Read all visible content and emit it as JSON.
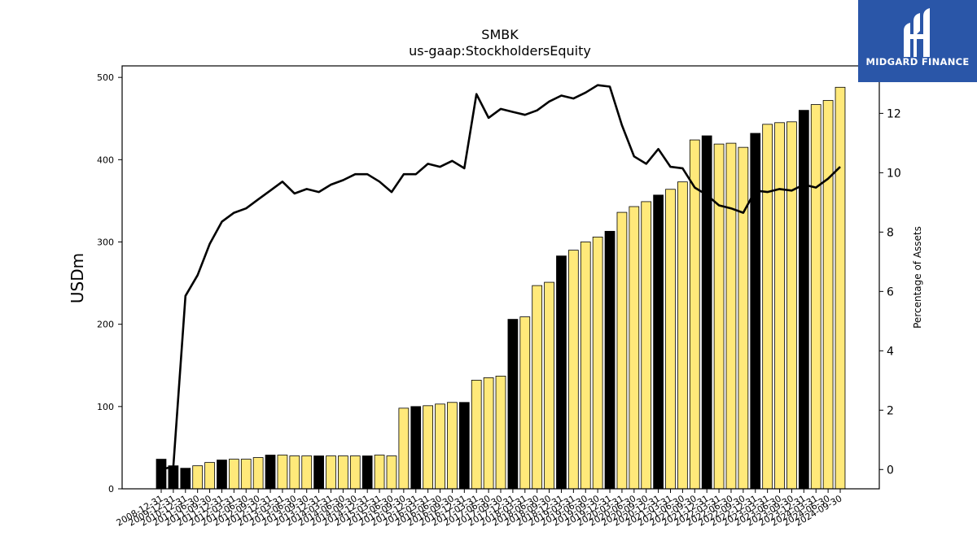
{
  "chart_data": {
    "type": "bar",
    "title": "SMBK",
    "subtitle": "us-gaap:StockholdersEquity",
    "ylabel": "USDm",
    "y2label": "Percentage of Assets",
    "ylim": [
      0,
      514
    ],
    "y2lim": [
      -0.65,
      13.6
    ],
    "yticks": [
      0,
      100,
      200,
      300,
      400,
      500
    ],
    "y2ticks": [
      0,
      2,
      4,
      6,
      8,
      10,
      12
    ],
    "categories": [
      "2008-12-31",
      "2009-12-31",
      "2010-12-31",
      "2011-06-30",
      "2011-09-30",
      "2011-12-31",
      "2012-03-31",
      "2012-06-30",
      "2012-09-30",
      "2012-12-31",
      "2013-03-31",
      "2013-06-30",
      "2013-09-30",
      "2013-12-31",
      "2014-03-31",
      "2014-06-30",
      "2014-09-30",
      "2014-12-31",
      "2015-03-31",
      "2015-06-30",
      "2015-09-30",
      "2015-12-31",
      "2016-03-31",
      "2016-06-30",
      "2016-09-30",
      "2016-12-31",
      "2017-03-31",
      "2017-06-30",
      "2017-09-30",
      "2017-12-31",
      "2018-03-31",
      "2018-06-30",
      "2018-09-30",
      "2018-12-31",
      "2019-03-31",
      "2019-06-30",
      "2019-09-30",
      "2019-12-31",
      "2020-03-31",
      "2020-06-30",
      "2020-09-30",
      "2020-12-31",
      "2021-03-31",
      "2021-06-30",
      "2021-09-30",
      "2021-12-31",
      "2022-03-31",
      "2022-06-30",
      "2022-09-30",
      "2022-12-31",
      "2023-03-31",
      "2023-06-30",
      "2023-09-30",
      "2023-12-31",
      "2024-03-31",
      "2024-06-30",
      "2024-09-30"
    ],
    "values": [
      36,
      28,
      25,
      28,
      32,
      35,
      36,
      36,
      38,
      41,
      41,
      40,
      40,
      40,
      40,
      40,
      40,
      40,
      41,
      40,
      98,
      100,
      101,
      103,
      105,
      105,
      132,
      135,
      137,
      206,
      209,
      247,
      251,
      283,
      290,
      300,
      306,
      313,
      336,
      343,
      349,
      357,
      364,
      373,
      424,
      429,
      419,
      420,
      415,
      432,
      443,
      445,
      446,
      460,
      467,
      472,
      488
    ],
    "year_end": [
      true,
      true,
      true,
      false,
      false,
      true,
      false,
      false,
      false,
      true,
      false,
      false,
      false,
      true,
      false,
      false,
      false,
      true,
      false,
      false,
      false,
      true,
      false,
      false,
      false,
      true,
      false,
      false,
      false,
      true,
      false,
      false,
      false,
      true,
      false,
      false,
      false,
      true,
      false,
      false,
      false,
      true,
      false,
      false,
      false,
      true,
      false,
      false,
      false,
      true,
      false,
      false,
      false,
      true,
      false,
      false,
      false
    ],
    "pct_assets": [
      0.0,
      0.1,
      5.85,
      6.55,
      7.6,
      8.35,
      8.65,
      8.8,
      9.1,
      9.4,
      9.7,
      9.3,
      9.45,
      9.35,
      9.6,
      9.75,
      9.95,
      9.95,
      9.7,
      9.35,
      9.95,
      9.95,
      10.3,
      10.2,
      10.4,
      10.15,
      12.65,
      11.85,
      12.15,
      12.05,
      11.95,
      12.1,
      12.4,
      12.6,
      12.5,
      12.7,
      12.95,
      12.9,
      11.6,
      10.55,
      10.3,
      10.8,
      10.2,
      10.15,
      9.5,
      9.25,
      8.9,
      8.8,
      8.65,
      9.4,
      9.35,
      9.45,
      9.4,
      9.6,
      9.5,
      9.8,
      10.2
    ],
    "bar_colors": {
      "year_end": "#000000",
      "interim": "#ffe97a",
      "line": "#000000"
    }
  },
  "logo": {
    "text": "MIDGARD FINANCE",
    "bg_color": "#2a56a8"
  }
}
